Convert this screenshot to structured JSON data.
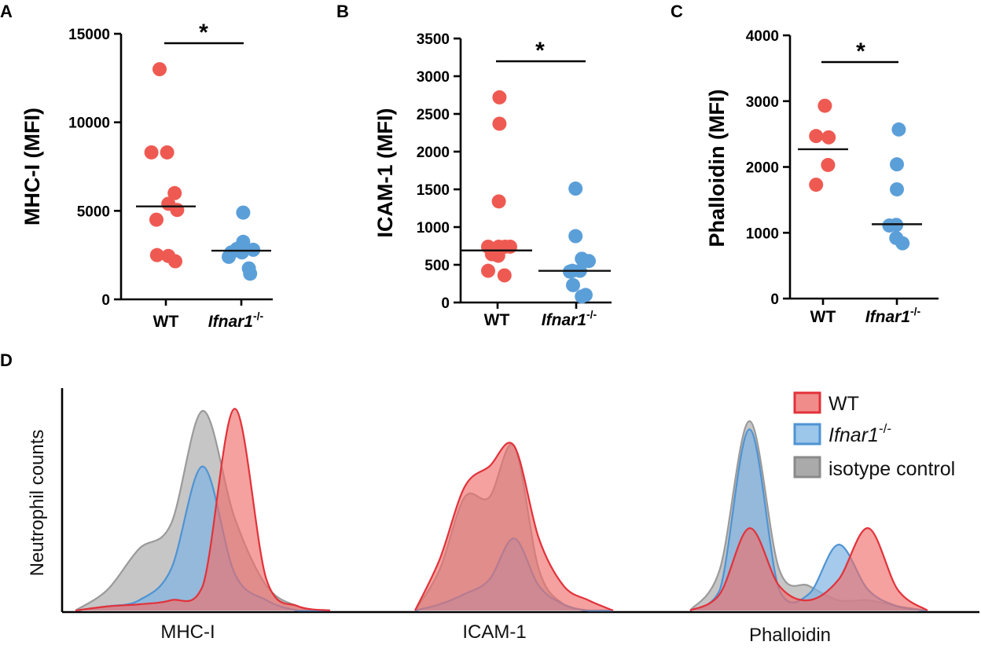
{
  "colors": {
    "wt": "#ee5a52",
    "ko": "#5b9fd9",
    "iso": "#9a9a9a"
  },
  "chart_data": [
    {
      "panel": "A",
      "type": "scatter",
      "ylabel": "MHC-I (MFI)",
      "ylim": [
        0,
        15000
      ],
      "yticks": [
        0,
        5000,
        10000,
        15000
      ],
      "categories": [
        {
          "label": "WT",
          "italic": false,
          "sup": ""
        },
        {
          "label": "Ifnar1",
          "italic": true,
          "sup": "-/-"
        }
      ],
      "series": [
        {
          "name": "WT",
          "offsets": [
            -0.5,
            0.1,
            -1.15,
            0.7,
            0.2,
            0.9,
            -0.75,
            -0.7,
            0.2,
            0.75
          ],
          "values": [
            13000,
            8300,
            8300,
            6000,
            5400,
            5050,
            4500,
            2500,
            2450,
            2150
          ],
          "median": 5250
        },
        {
          "name": "Ifnar1-/-",
          "offsets": [
            0.15,
            0.15,
            -0.35,
            0.95,
            -0.8,
            0.05,
            -1.0,
            0.6,
            0.7
          ],
          "values": [
            4900,
            3250,
            2850,
            2800,
            2650,
            2650,
            2400,
            1750,
            1450
          ],
          "median": 2750
        }
      ],
      "significance": "*"
    },
    {
      "panel": "B",
      "type": "scatter",
      "ylabel": "ICAM-1 (MFI)",
      "ylim": [
        0,
        3500
      ],
      "yticks": [
        0,
        500,
        1000,
        1500,
        2000,
        2500,
        3000,
        3500
      ],
      "categories": [
        {
          "label": "WT",
          "italic": false,
          "sup": ""
        },
        {
          "label": "Ifnar1",
          "italic": true,
          "sup": "-/-"
        }
      ],
      "series": [
        {
          "name": "WT",
          "offsets": [
            0.15,
            0.15,
            0.1,
            -0.75,
            0.1,
            0.6,
            1.0,
            -0.45,
            0.05,
            -0.75,
            0.55
          ],
          "values": [
            2720,
            2370,
            1340,
            740,
            740,
            740,
            740,
            640,
            620,
            420,
            360
          ],
          "median": 690
        },
        {
          "name": "Ifnar1-/-",
          "offsets": [
            -0.05,
            -0.05,
            0.45,
            1.0,
            -0.3,
            0.3,
            -0.5,
            -0.25,
            0.75,
            0.45
          ],
          "values": [
            1510,
            880,
            580,
            550,
            420,
            420,
            410,
            230,
            100,
            80
          ],
          "median": 420
        }
      ],
      "significance": "*"
    },
    {
      "panel": "C",
      "type": "scatter",
      "ylabel": "Phalloidin (MFI)",
      "ylim": [
        0,
        4000
      ],
      "yticks": [
        0,
        1000,
        2000,
        3000,
        4000
      ],
      "categories": [
        {
          "label": "WT",
          "italic": false,
          "sup": ""
        },
        {
          "label": "Ifnar1",
          "italic": true,
          "sup": "-/-"
        }
      ],
      "series": [
        {
          "name": "WT",
          "offsets": [
            0.15,
            -0.55,
            0.45,
            0.4,
            -0.55
          ],
          "values": [
            2930,
            2470,
            2450,
            2030,
            1730
          ],
          "median": 2270
        },
        {
          "name": "Ifnar1-/-",
          "offsets": [
            0.15,
            0.0,
            0.0,
            -0.05,
            -0.6,
            -0.05,
            0.45
          ],
          "values": [
            2570,
            2040,
            1660,
            1120,
            1110,
            920,
            840
          ],
          "median": 1130
        }
      ],
      "significance": "*"
    },
    {
      "panel": "D",
      "type": "area",
      "ylabel": "Neutrophil counts",
      "legend_position": "top-right",
      "legend": [
        {
          "label": "WT",
          "italic": false,
          "sup": ""
        },
        {
          "label": "Ifnar1",
          "italic": true,
          "sup": "-/-"
        },
        {
          "label": "isotype control",
          "italic": false,
          "sup": ""
        }
      ],
      "markers": [
        "MHC-I",
        "ICAM-1",
        "Phalloidin"
      ],
      "x": [
        0.0,
        0.125,
        0.25,
        0.375,
        0.5,
        0.625,
        0.75,
        0.875,
        1.0
      ],
      "histograms": {
        "MHC-I": {
          "iso": [
            0.0,
            0.1,
            0.3,
            0.42,
            0.97,
            0.45,
            0.12,
            0.02,
            0.0
          ],
          "ko": [
            0.0,
            0.02,
            0.05,
            0.2,
            0.7,
            0.18,
            0.05,
            0.0,
            0.0
          ],
          "wt": [
            0.0,
            0.02,
            0.03,
            0.05,
            0.12,
            0.98,
            0.15,
            0.02,
            0.0
          ]
        },
        "ICAM-1": {
          "iso": [
            0.0,
            0.2,
            0.55,
            0.55,
            0.8,
            0.2,
            0.03,
            0.0,
            0.0
          ],
          "ko": [
            0.0,
            0.03,
            0.08,
            0.15,
            0.35,
            0.12,
            0.03,
            0.0,
            0.0
          ],
          "wt": [
            0.0,
            0.25,
            0.6,
            0.7,
            0.8,
            0.35,
            0.12,
            0.05,
            0.0
          ]
        },
        "Phalloidin": {
          "iso": [
            0.0,
            0.2,
            0.92,
            0.2,
            0.12,
            0.05,
            0.05,
            0.02,
            0.0
          ],
          "ko": [
            0.0,
            0.1,
            0.88,
            0.1,
            0.08,
            0.32,
            0.1,
            0.02,
            0.0
          ],
          "wt": [
            0.0,
            0.08,
            0.4,
            0.12,
            0.05,
            0.15,
            0.4,
            0.1,
            0.0
          ]
        }
      }
    }
  ]
}
